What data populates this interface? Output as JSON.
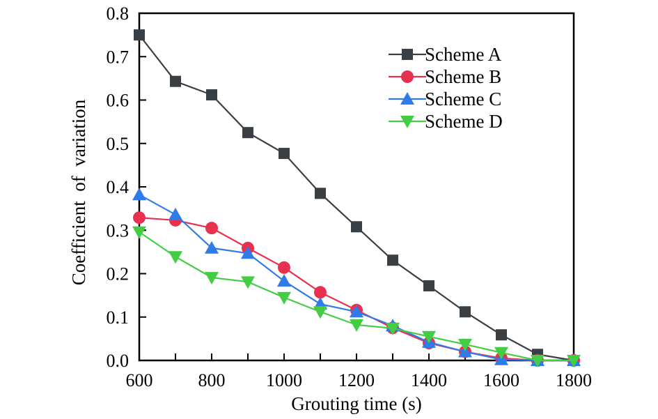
{
  "chart_data": {
    "type": "line",
    "title": "",
    "xlabel": "Grouting time (s)",
    "ylabel": "Coefficient  of  variation",
    "xlim": [
      600,
      1800
    ],
    "ylim": [
      0.0,
      0.8
    ],
    "xticks": [
      600,
      800,
      1000,
      1200,
      1400,
      1600,
      1800
    ],
    "xtick_labels": [
      "600",
      "800",
      "1000",
      "1200",
      "1400",
      "1600",
      "1800"
    ],
    "yticks": [
      0.0,
      0.1,
      0.2,
      0.3,
      0.4,
      0.5,
      0.6,
      0.7,
      0.8
    ],
    "ytick_labels": [
      "0.0",
      "0.1",
      "0.2",
      "0.3",
      "0.4",
      "0.5",
      "0.6",
      "0.7",
      "0.8"
    ],
    "grid": false,
    "legend_position": "top-right",
    "x": [
      600,
      700,
      800,
      900,
      1000,
      1100,
      1200,
      1300,
      1400,
      1500,
      1600,
      1700,
      1800
    ],
    "series": [
      {
        "name": "Scheme A",
        "color": "#3a3f44",
        "marker": "square",
        "values": [
          0.75,
          0.643,
          0.612,
          0.525,
          0.477,
          0.385,
          0.308,
          0.231,
          0.172,
          0.112,
          0.059,
          0.014,
          0.0
        ]
      },
      {
        "name": "Scheme B",
        "color": "#e8304f",
        "marker": "circle",
        "values": [
          0.329,
          0.323,
          0.305,
          0.259,
          0.214,
          0.157,
          0.116,
          0.075,
          0.04,
          0.02,
          0.005,
          0.0,
          0.0
        ]
      },
      {
        "name": "Scheme C",
        "color": "#2f7be8",
        "marker": "triangle-up",
        "values": [
          0.382,
          0.336,
          0.259,
          0.247,
          0.183,
          0.13,
          0.112,
          0.08,
          0.042,
          0.02,
          0.002,
          0.0,
          0.0
        ]
      },
      {
        "name": "Scheme D",
        "color": "#44cc44",
        "marker": "triangle-down",
        "values": [
          0.296,
          0.239,
          0.191,
          0.181,
          0.145,
          0.112,
          0.082,
          0.074,
          0.055,
          0.037,
          0.018,
          0.0,
          0.0
        ]
      }
    ]
  }
}
